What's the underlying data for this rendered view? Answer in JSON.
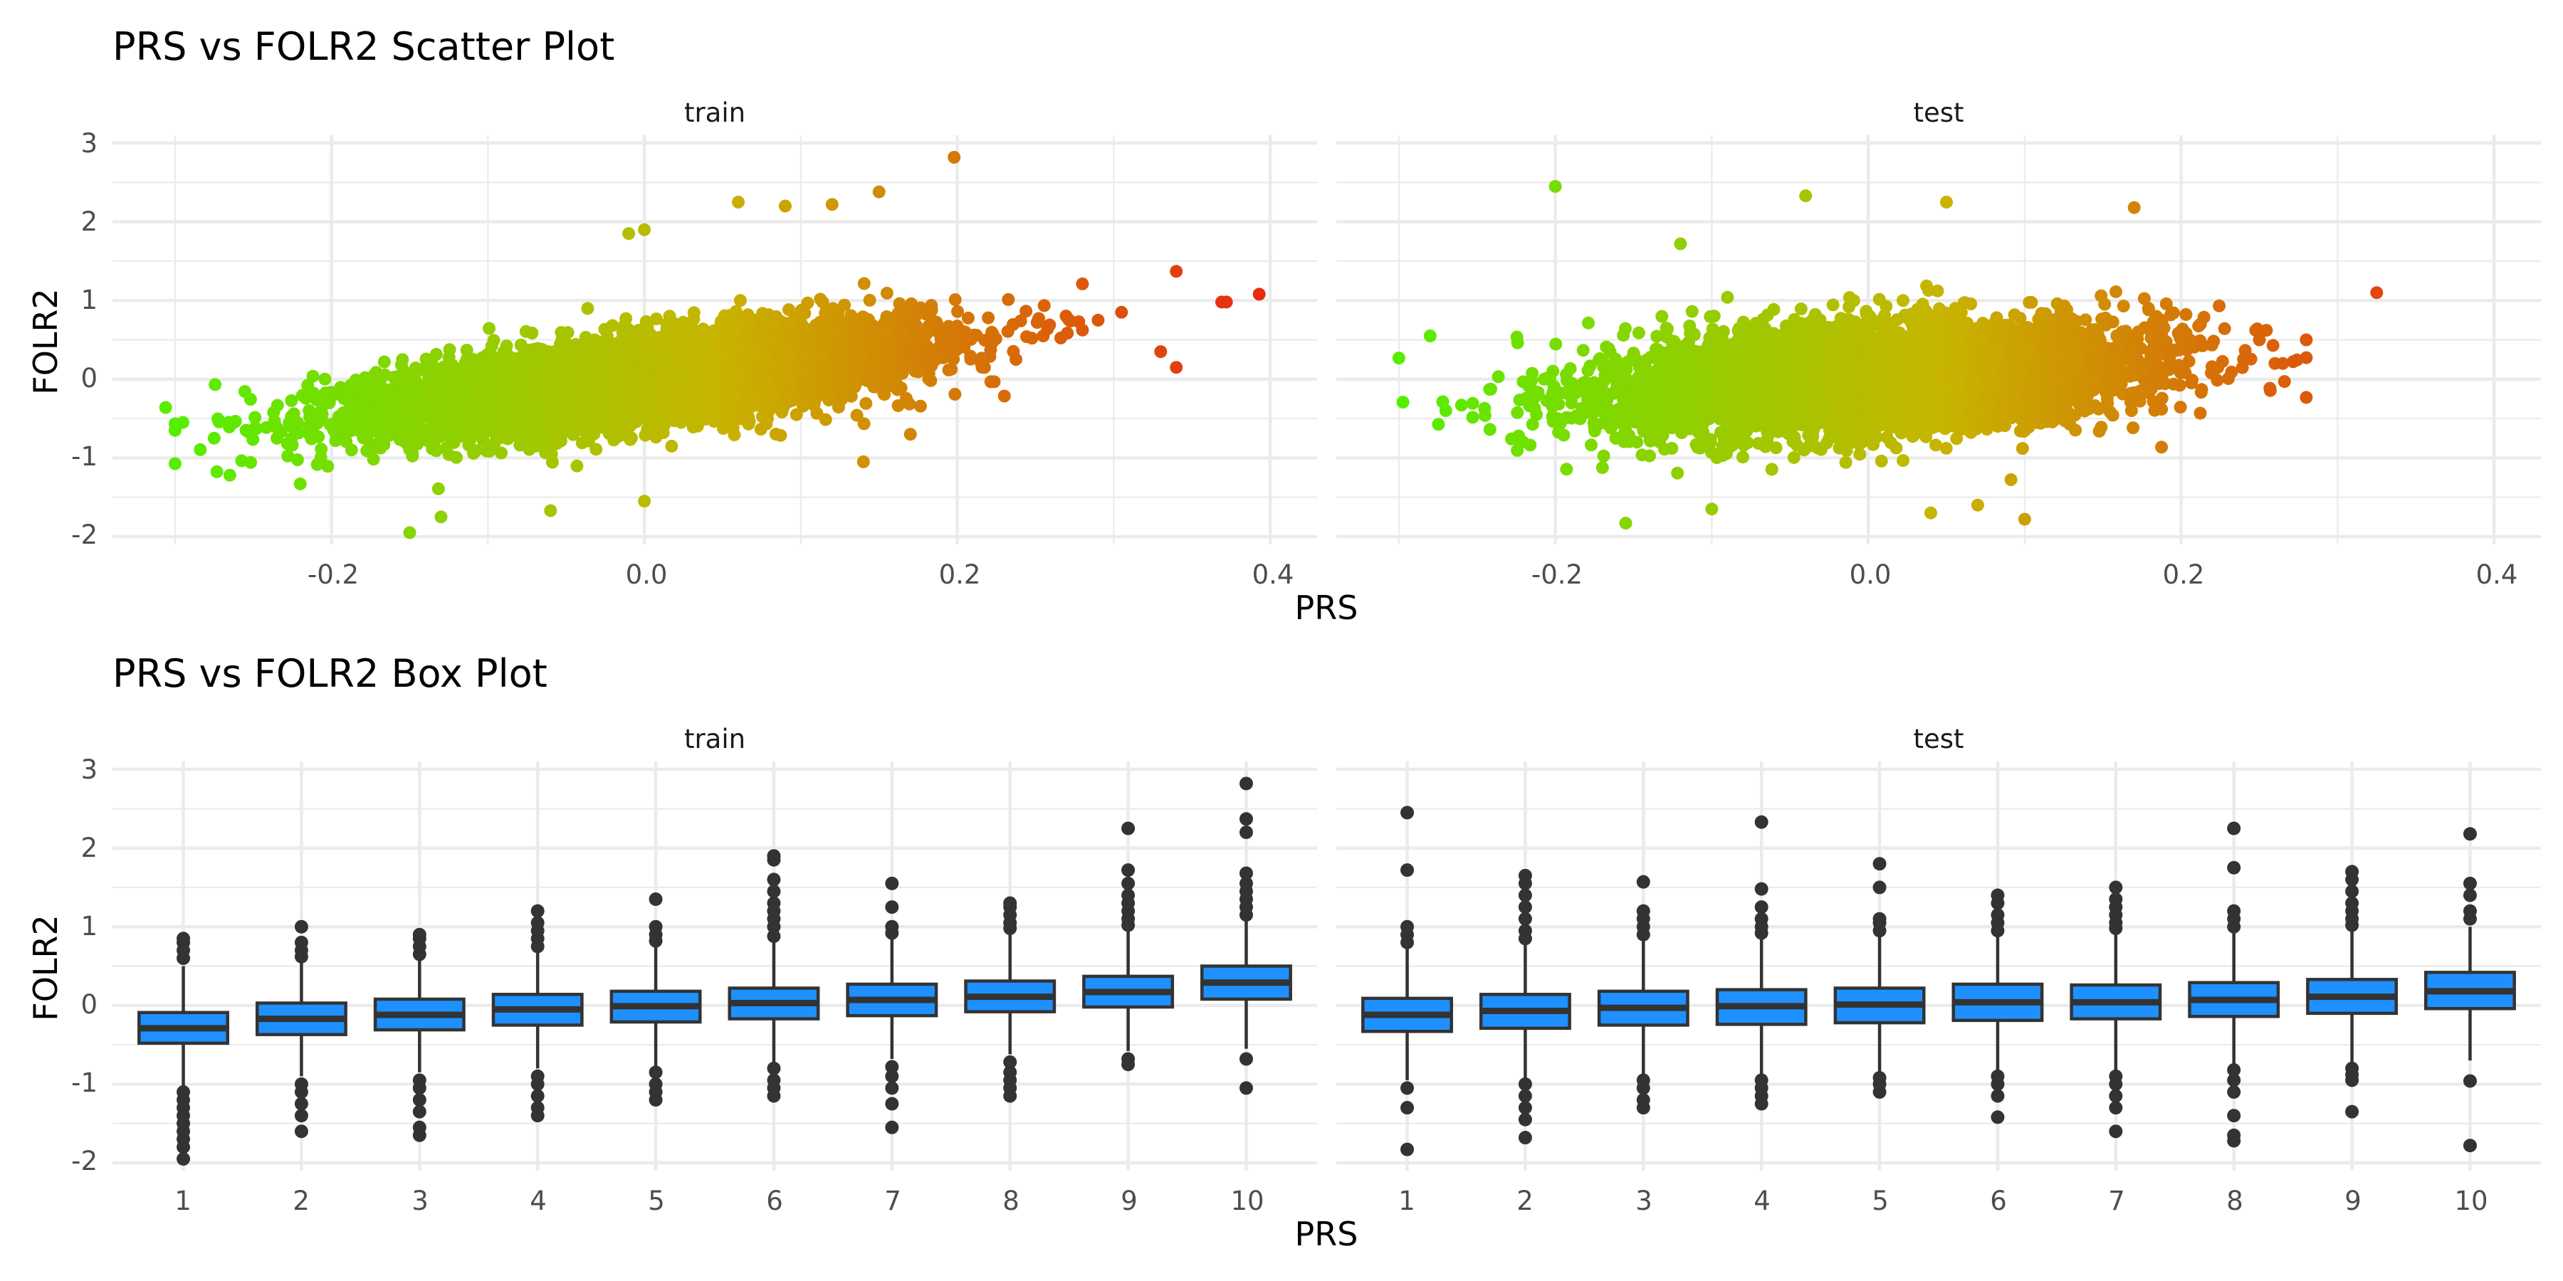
{
  "chart_data": [
    {
      "type": "scatter",
      "title": "PRS vs FOLR2 Scatter Plot",
      "xlabel": "PRS",
      "ylabel": "FOLR2",
      "xlim": [
        -0.34,
        0.43
      ],
      "ylim": [
        -2.1,
        3.1
      ],
      "x_ticks": [
        "-0.2",
        "0.0",
        "0.2",
        "0.4"
      ],
      "x_tick_values": [
        -0.2,
        0.0,
        0.2,
        0.4
      ],
      "y_ticks": [
        "-2",
        "-1",
        "0",
        "1",
        "2",
        "3"
      ],
      "y_tick_values": [
        -2,
        -1,
        0,
        1,
        2,
        3
      ],
      "grid": true,
      "color_scale": {
        "low": "#55ee00",
        "mid": "#c8b400",
        "high": "#e62810",
        "range": [
          -0.3,
          0.4
        ]
      },
      "panels": [
        {
          "name": "train",
          "cloud": {
            "x_mean": 0.0,
            "x_sd": 0.085,
            "slope": 2.3,
            "y_sd": 0.26,
            "n": 6500
          },
          "outliers": [
            {
              "x": 0.198,
              "y": 2.82
            },
            {
              "x": 0.393,
              "y": 1.08
            },
            {
              "x": 0.372,
              "y": 0.98
            },
            {
              "x": 0.369,
              "y": 0.98
            },
            {
              "x": 0.34,
              "y": 1.37
            },
            {
              "x": 0.34,
              "y": 0.15
            },
            {
              "x": 0.33,
              "y": 0.35
            },
            {
              "x": 0.305,
              "y": 0.85
            },
            {
              "x": 0.29,
              "y": 0.75
            },
            {
              "x": -0.306,
              "y": -0.36
            },
            {
              "x": -0.3,
              "y": -0.65
            },
            {
              "x": -0.295,
              "y": -0.55
            },
            {
              "x": -0.275,
              "y": -0.75
            },
            {
              "x": -0.265,
              "y": -1.22
            },
            {
              "x": -0.22,
              "y": -1.33
            },
            {
              "x": -0.15,
              "y": -1.95
            },
            {
              "x": -0.13,
              "y": -1.75
            },
            {
              "x": -0.06,
              "y": -1.67
            },
            {
              "x": 0.0,
              "y": -1.55
            },
            {
              "x": 0.06,
              "y": 2.25
            },
            {
              "x": 0.09,
              "y": 2.2
            },
            {
              "x": 0.15,
              "y": 2.38
            },
            {
              "x": 0.12,
              "y": 2.22
            },
            {
              "x": 0.0,
              "y": 1.9
            },
            {
              "x": -0.01,
              "y": 1.85
            },
            {
              "x": 0.14,
              "y": -1.05
            },
            {
              "x": 0.17,
              "y": -0.7
            }
          ]
        },
        {
          "name": "test",
          "cloud": {
            "x_mean": 0.0,
            "x_sd": 0.085,
            "slope": 1.1,
            "y_sd": 0.33,
            "n": 5500
          },
          "outliers": [
            {
              "x": -0.2,
              "y": 2.45
            },
            {
              "x": -0.28,
              "y": 0.55
            },
            {
              "x": -0.27,
              "y": -0.4
            },
            {
              "x": -0.26,
              "y": -0.33
            },
            {
              "x": 0.325,
              "y": 1.1
            },
            {
              "x": 0.17,
              "y": 2.18
            },
            {
              "x": -0.155,
              "y": -1.83
            },
            {
              "x": 0.1,
              "y": -1.78
            },
            {
              "x": -0.04,
              "y": 2.33
            },
            {
              "x": 0.05,
              "y": 2.25
            },
            {
              "x": -0.12,
              "y": 1.72
            },
            {
              "x": 0.07,
              "y": -1.6
            },
            {
              "x": -0.1,
              "y": -1.65
            },
            {
              "x": 0.26,
              "y": 0.2
            },
            {
              "x": 0.265,
              "y": 0.2
            },
            {
              "x": 0.25,
              "y": 0.5
            },
            {
              "x": 0.04,
              "y": -1.7
            }
          ]
        }
      ]
    },
    {
      "type": "box",
      "title": "PRS vs FOLR2 Box Plot",
      "xlabel": "PRS",
      "ylabel": "FOLR2",
      "categories": [
        "1",
        "2",
        "3",
        "4",
        "5",
        "6",
        "7",
        "8",
        "9",
        "10"
      ],
      "ylim": [
        -2.1,
        3.1
      ],
      "y_ticks": [
        "-2",
        "-1",
        "0",
        "1",
        "2",
        "3"
      ],
      "y_tick_values": [
        -2,
        -1,
        0,
        1,
        2,
        3
      ],
      "grid": true,
      "fill_color": "#1e90ff",
      "line_color": "#333333",
      "panels": [
        {
          "name": "train",
          "boxes": [
            {
              "q1": -0.48,
              "median": -0.29,
              "q3": -0.09,
              "lower": -1.05,
              "upper": 0.5,
              "outliers": [
                -1.95,
                -1.8,
                -1.7,
                -1.6,
                -1.5,
                -1.4,
                -1.3,
                -1.2,
                -1.1,
                0.6,
                0.7,
                0.8,
                0.85
              ]
            },
            {
              "q1": -0.37,
              "median": -0.17,
              "q3": 0.03,
              "lower": -0.9,
              "upper": 0.55,
              "outliers": [
                -1.6,
                -1.4,
                -1.25,
                -1.1,
                -1.0,
                0.62,
                0.7,
                0.8,
                1.0
              ]
            },
            {
              "q1": -0.31,
              "median": -0.12,
              "q3": 0.08,
              "lower": -0.85,
              "upper": 0.6,
              "outliers": [
                -1.65,
                -1.55,
                -1.35,
                -1.2,
                -1.05,
                -0.95,
                0.65,
                0.75,
                0.85,
                0.9
              ]
            },
            {
              "q1": -0.25,
              "median": -0.05,
              "q3": 0.14,
              "lower": -0.8,
              "upper": 0.68,
              "outliers": [
                -1.4,
                -1.3,
                -1.15,
                -1.0,
                -0.9,
                0.75,
                0.85,
                0.95,
                1.05,
                1.2
              ]
            },
            {
              "q1": -0.21,
              "median": -0.01,
              "q3": 0.18,
              "lower": -0.78,
              "upper": 0.75,
              "outliers": [
                -1.2,
                -1.1,
                -1.0,
                -0.85,
                0.82,
                0.9,
                1.0,
                1.35
              ]
            },
            {
              "q1": -0.17,
              "median": 0.03,
              "q3": 0.22,
              "lower": -0.72,
              "upper": 0.8,
              "outliers": [
                -1.15,
                -1.05,
                -0.95,
                -0.8,
                0.88,
                1.0,
                1.1,
                1.2,
                1.3,
                1.45,
                1.6,
                1.85,
                1.9
              ]
            },
            {
              "q1": -0.13,
              "median": 0.07,
              "q3": 0.27,
              "lower": -0.68,
              "upper": 0.85,
              "outliers": [
                -1.55,
                -1.25,
                -1.05,
                -0.9,
                -0.78,
                0.92,
                1.0,
                1.25,
                1.55
              ]
            },
            {
              "q1": -0.08,
              "median": 0.11,
              "q3": 0.31,
              "lower": -0.62,
              "upper": 0.9,
              "outliers": [
                -1.15,
                -1.05,
                -0.95,
                -0.85,
                -0.72,
                0.98,
                1.05,
                1.15,
                1.25,
                1.3
              ]
            },
            {
              "q1": -0.02,
              "median": 0.17,
              "q3": 0.37,
              "lower": -0.58,
              "upper": 0.95,
              "outliers": [
                -0.75,
                -0.68,
                1.02,
                1.1,
                1.2,
                1.3,
                1.4,
                1.55,
                1.72,
                2.25
              ]
            },
            {
              "q1": 0.08,
              "median": 0.29,
              "q3": 0.5,
              "lower": -0.55,
              "upper": 1.08,
              "outliers": [
                -1.05,
                -0.68,
                1.15,
                1.25,
                1.35,
                1.45,
                1.55,
                1.68,
                2.2,
                2.37,
                2.82
              ]
            }
          ]
        },
        {
          "name": "test",
          "boxes": [
            {
              "q1": -0.33,
              "median": -0.12,
              "q3": 0.09,
              "lower": -0.95,
              "upper": 0.72,
              "outliers": [
                -1.83,
                -1.3,
                -1.05,
                0.8,
                0.9,
                1.0,
                1.72,
                2.45
              ]
            },
            {
              "q1": -0.29,
              "median": -0.07,
              "q3": 0.14,
              "lower": -0.92,
              "upper": 0.78,
              "outliers": [
                -1.68,
                -1.45,
                -1.3,
                -1.15,
                -1.0,
                0.85,
                0.95,
                1.1,
                1.25,
                1.4,
                1.55,
                1.65
              ]
            },
            {
              "q1": -0.25,
              "median": -0.03,
              "q3": 0.18,
              "lower": -0.88,
              "upper": 0.82,
              "outliers": [
                -1.3,
                -1.2,
                -1.05,
                -0.95,
                0.9,
                1.0,
                1.1,
                1.2,
                1.57
              ]
            },
            {
              "q1": -0.24,
              "median": -0.01,
              "q3": 0.2,
              "lower": -0.88,
              "upper": 0.85,
              "outliers": [
                -1.25,
                -1.15,
                -1.05,
                -0.95,
                0.92,
                1.0,
                1.1,
                1.25,
                1.48,
                2.33
              ]
            },
            {
              "q1": -0.22,
              "median": 0.01,
              "q3": 0.22,
              "lower": -0.86,
              "upper": 0.87,
              "outliers": [
                -1.1,
                -1.0,
                -0.92,
                0.95,
                1.05,
                1.1,
                1.5,
                1.8
              ]
            },
            {
              "q1": -0.19,
              "median": 0.04,
              "q3": 0.27,
              "lower": -0.85,
              "upper": 0.88,
              "outliers": [
                -1.42,
                -1.15,
                -1.0,
                -0.9,
                0.95,
                1.05,
                1.15,
                1.3,
                1.4
              ]
            },
            {
              "q1": -0.17,
              "median": 0.04,
              "q3": 0.26,
              "lower": -0.82,
              "upper": 0.9,
              "outliers": [
                -1.6,
                -1.3,
                -1.15,
                -1.0,
                -0.9,
                0.98,
                1.05,
                1.15,
                1.25,
                1.35,
                1.5
              ]
            },
            {
              "q1": -0.14,
              "median": 0.07,
              "q3": 0.29,
              "lower": -0.78,
              "upper": 0.92,
              "outliers": [
                -1.72,
                -1.65,
                -1.4,
                -1.1,
                -0.95,
                -0.82,
                1.0,
                1.1,
                1.2,
                1.75,
                2.25
              ]
            },
            {
              "q1": -0.1,
              "median": 0.11,
              "q3": 0.33,
              "lower": -0.75,
              "upper": 0.95,
              "outliers": [
                -1.35,
                -0.95,
                -0.88,
                -0.8,
                1.02,
                1.1,
                1.2,
                1.3,
                1.45,
                1.6,
                1.7
              ]
            },
            {
              "q1": -0.04,
              "median": 0.18,
              "q3": 0.42,
              "lower": -0.7,
              "upper": 1.0,
              "outliers": [
                -1.78,
                -0.96,
                1.1,
                1.2,
                1.4,
                1.55,
                2.18
              ]
            }
          ]
        }
      ]
    }
  ]
}
